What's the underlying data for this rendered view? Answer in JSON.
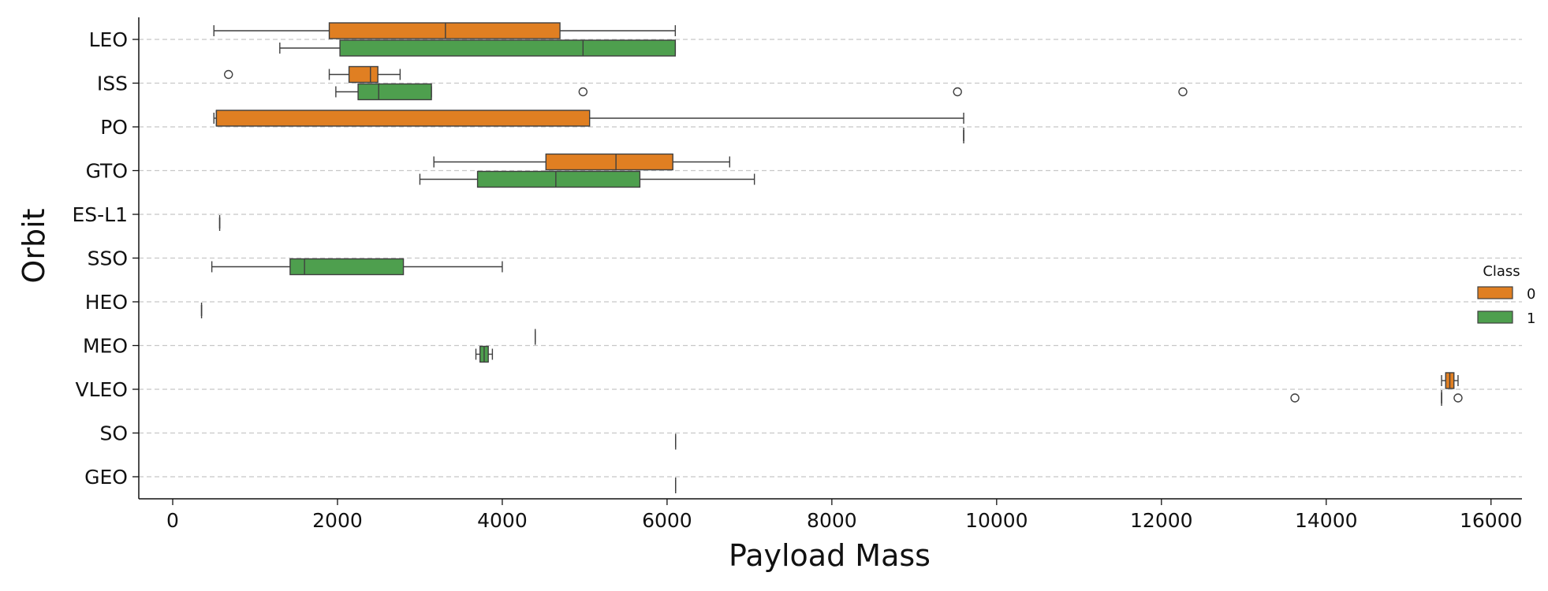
{
  "chart_data": {
    "type": "box",
    "orientation": "horizontal",
    "xlabel": "Payload Mass",
    "ylabel": "Orbit",
    "xlim": [
      -400,
      16350
    ],
    "xticks": [
      0,
      2000,
      4000,
      6000,
      8000,
      10000,
      12000,
      14000,
      16000
    ],
    "categories": [
      "LEO",
      "ISS",
      "PO",
      "GTO",
      "ES-L1",
      "SSO",
      "HEO",
      "MEO",
      "VLEO",
      "SO",
      "GEO"
    ],
    "grid": "horizontal dashed",
    "legend": {
      "title": "Class",
      "placement": "right",
      "entries": [
        {
          "label": "0",
          "color": "#e07f22"
        },
        {
          "label": "1",
          "color": "#4e9f4e"
        }
      ]
    },
    "series": [
      {
        "name": "0",
        "color": "#e07f22",
        "boxes": [
          {
            "category": "LEO",
            "whislo": 500,
            "q1": 1900,
            "med": 3310,
            "q3": 4700,
            "whishi": 6100,
            "fliers": []
          },
          {
            "category": "ISS",
            "whislo": 1900,
            "q1": 2140,
            "med": 2400,
            "q3": 2490,
            "whishi": 2760,
            "fliers": [
              677
            ]
          },
          {
            "category": "PO",
            "whislo": 500,
            "q1": 530,
            "med": 530,
            "q3": 5060,
            "whishi": 9600,
            "fliers": []
          },
          {
            "category": "GTO",
            "whislo": 3170,
            "q1": 4530,
            "med": 5380,
            "q3": 6070,
            "whishi": 6760,
            "fliers": []
          },
          {
            "category": "MEO",
            "whislo": 4400,
            "q1": 4400,
            "med": 4400,
            "q3": 4400,
            "whishi": 4400,
            "fliers": []
          },
          {
            "category": "VLEO",
            "whislo": 15400,
            "q1": 15450,
            "med": 15500,
            "q3": 15550,
            "whishi": 15600,
            "fliers": []
          }
        ]
      },
      {
        "name": "1",
        "color": "#4e9f4e",
        "boxes": [
          {
            "category": "LEO",
            "whislo": 1300,
            "q1": 2030,
            "med": 4980,
            "q3": 6100,
            "whishi": 6100,
            "fliers": []
          },
          {
            "category": "ISS",
            "whislo": 1980,
            "q1": 2250,
            "med": 2500,
            "q3": 3140,
            "whishi": 3140,
            "fliers": [
              4980,
              9525,
              12260
            ]
          },
          {
            "category": "PO",
            "whislo": 9600,
            "q1": 9600,
            "med": 9600,
            "q3": 9600,
            "whishi": 9600,
            "fliers": []
          },
          {
            "category": "GTO",
            "whislo": 3000,
            "q1": 3700,
            "med": 4650,
            "q3": 5670,
            "whishi": 7060,
            "fliers": []
          },
          {
            "category": "ES-L1",
            "whislo": 570,
            "q1": 570,
            "med": 570,
            "q3": 570,
            "whishi": 570,
            "fliers": []
          },
          {
            "category": "SSO",
            "whislo": 475,
            "q1": 1425,
            "med": 1600,
            "q3": 2800,
            "whishi": 4000,
            "fliers": []
          },
          {
            "category": "HEO",
            "whislo": 350,
            "q1": 350,
            "med": 350,
            "q3": 350,
            "whishi": 350,
            "fliers": []
          },
          {
            "category": "MEO",
            "whislo": 3680,
            "q1": 3730,
            "med": 3780,
            "q3": 3830,
            "whishi": 3880,
            "fliers": []
          },
          {
            "category": "VLEO",
            "whislo": 15400,
            "q1": 15400,
            "med": 15400,
            "q3": 15400,
            "whishi": 15400,
            "fliers": [
              13620,
              15600
            ]
          },
          {
            "category": "SO",
            "whislo": 6104,
            "q1": 6104,
            "med": 6104,
            "q3": 6104,
            "whishi": 6104,
            "fliers": []
          },
          {
            "category": "GEO",
            "whislo": 6104,
            "q1": 6104,
            "med": 6104,
            "q3": 6104,
            "whishi": 6104,
            "fliers": []
          }
        ]
      }
    ]
  }
}
